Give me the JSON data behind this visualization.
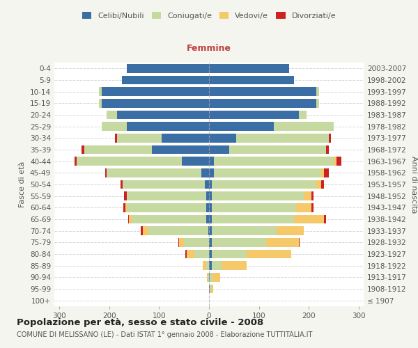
{
  "age_groups": [
    "100+",
    "95-99",
    "90-94",
    "85-89",
    "80-84",
    "75-79",
    "70-74",
    "65-69",
    "60-64",
    "55-59",
    "50-54",
    "45-49",
    "40-44",
    "35-39",
    "30-34",
    "25-29",
    "20-24",
    "15-19",
    "10-14",
    "5-9",
    "0-4"
  ],
  "birth_years": [
    "≤ 1907",
    "1908-1912",
    "1913-1917",
    "1918-1922",
    "1923-1927",
    "1928-1932",
    "1933-1937",
    "1938-1942",
    "1943-1947",
    "1948-1952",
    "1953-1957",
    "1958-1962",
    "1963-1967",
    "1968-1972",
    "1973-1977",
    "1978-1982",
    "1983-1987",
    "1988-1992",
    "1993-1997",
    "1998-2002",
    "2003-2007"
  ],
  "males": {
    "celibi": [
      0,
      0,
      0,
      0,
      0,
      0,
      2,
      5,
      5,
      5,
      8,
      15,
      55,
      115,
      95,
      165,
      185,
      215,
      215,
      175,
      165
    ],
    "coniugati": [
      0,
      0,
      2,
      5,
      30,
      50,
      120,
      150,
      160,
      160,
      165,
      190,
      210,
      135,
      90,
      50,
      20,
      5,
      5,
      0,
      0
    ],
    "vedovi": [
      0,
      0,
      2,
      8,
      15,
      10,
      10,
      5,
      2,
      0,
      0,
      0,
      0,
      0,
      0,
      0,
      0,
      0,
      0,
      0,
      0
    ],
    "divorziati": [
      0,
      0,
      0,
      0,
      2,
      2,
      5,
      2,
      5,
      5,
      5,
      3,
      5,
      5,
      3,
      0,
      0,
      0,
      0,
      0,
      0
    ]
  },
  "females": {
    "nubili": [
      0,
      2,
      2,
      5,
      5,
      5,
      5,
      5,
      5,
      5,
      5,
      10,
      10,
      40,
      55,
      130,
      180,
      215,
      215,
      170,
      160
    ],
    "coniugate": [
      0,
      2,
      5,
      20,
      70,
      110,
      130,
      165,
      170,
      185,
      210,
      215,
      240,
      195,
      185,
      120,
      15,
      5,
      5,
      0,
      0
    ],
    "vedove": [
      0,
      5,
      15,
      50,
      90,
      65,
      55,
      60,
      30,
      15,
      10,
      5,
      5,
      0,
      0,
      0,
      0,
      0,
      0,
      0,
      0
    ],
    "divorziate": [
      0,
      0,
      0,
      0,
      0,
      2,
      0,
      5,
      5,
      5,
      5,
      10,
      10,
      5,
      5,
      0,
      0,
      0,
      0,
      0,
      0
    ]
  },
  "colors": {
    "celibi_nubili": "#3a6ea5",
    "coniugati": "#c5d9a0",
    "vedovi": "#f5c86a",
    "divorziati": "#cc2222"
  },
  "xlim": 310,
  "title": "Popolazione per età, sesso e stato civile - 2008",
  "subtitle": "COMUNE DI MELISSANO (LE) - Dati ISTAT 1° gennaio 2008 - Elaborazione TUTTITALIA.IT",
  "ylabel_left": "Fasce di età",
  "ylabel_right": "Anni di nascita",
  "xlabel_right": "Femmine",
  "bg_color": "#f5f5f0",
  "plot_bg_color": "#ffffff",
  "grid_color": "#cccccc"
}
